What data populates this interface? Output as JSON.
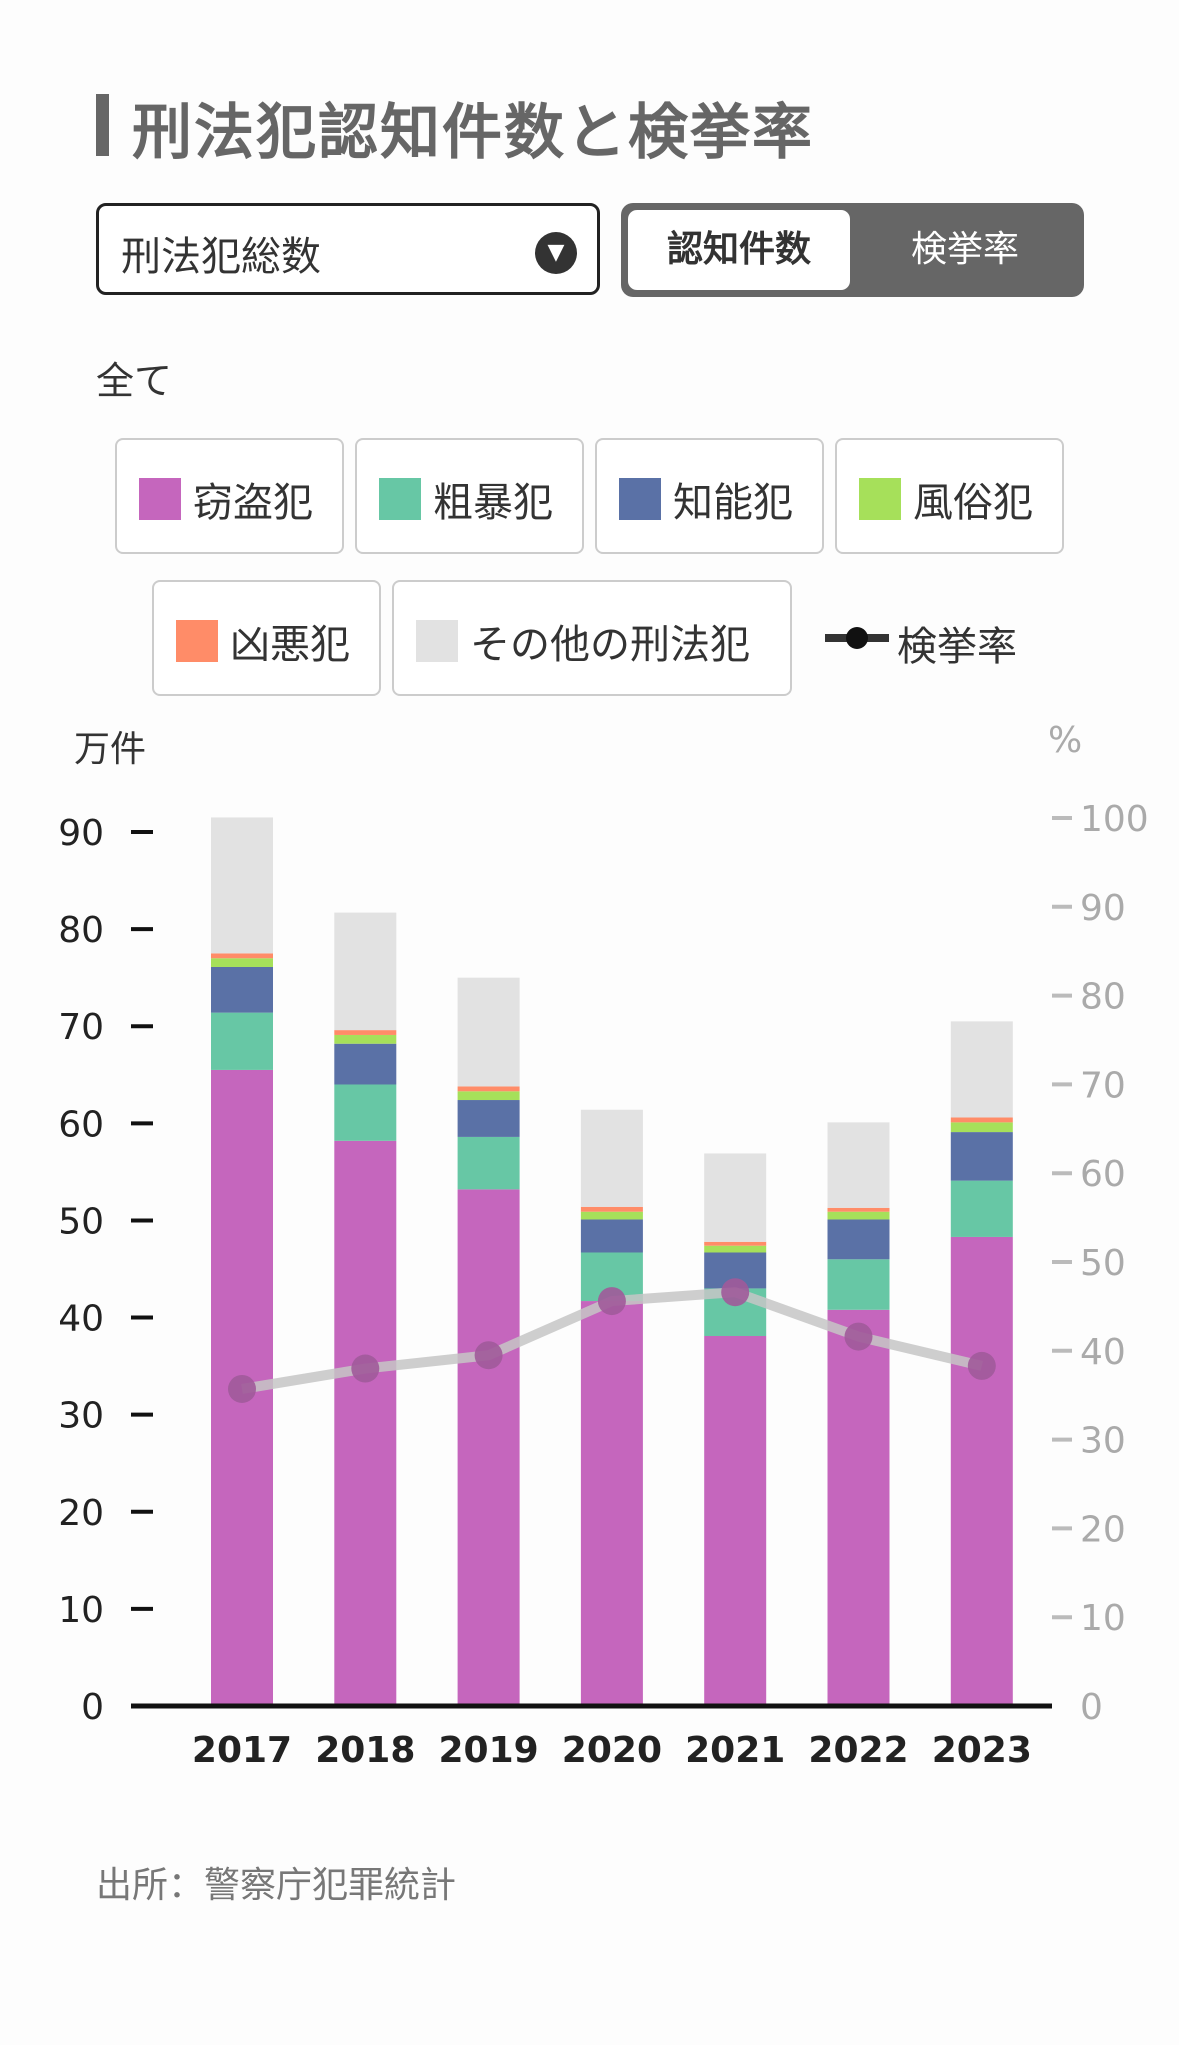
{
  "header": {
    "title": "刑法犯認知件数と検挙率"
  },
  "controls": {
    "category_select": "刑法犯総数",
    "toggle_active": "認知件数",
    "toggle_inactive": "検挙率",
    "scope_label": "全て"
  },
  "legend": {
    "items": [
      {
        "label": "窃盗犯",
        "color": "#c566bd"
      },
      {
        "label": "粗暴犯",
        "color": "#67c7a5"
      },
      {
        "label": "知能犯",
        "color": "#5a71a6"
      },
      {
        "label": "風俗犯",
        "color": "#a6e05a"
      },
      {
        "label": "凶悪犯",
        "color": "#ff8c68"
      },
      {
        "label": "その他の刑法犯",
        "color": "#e2e2e2"
      }
    ],
    "line_label": "検挙率"
  },
  "chart_data": {
    "type": "bar",
    "stacked": true,
    "categories": [
      "2017",
      "2018",
      "2019",
      "2020",
      "2021",
      "2022",
      "2023"
    ],
    "series": [
      {
        "name": "窃盗犯",
        "color": "#c566bd",
        "values": [
          65.5,
          58.2,
          53.2,
          41.7,
          38.1,
          40.8,
          48.3
        ]
      },
      {
        "name": "粗暴犯",
        "color": "#67c7a5",
        "values": [
          5.9,
          5.8,
          5.4,
          5.0,
          4.9,
          5.2,
          5.8
        ]
      },
      {
        "name": "知能犯",
        "color": "#5a71a6",
        "values": [
          4.7,
          4.2,
          3.8,
          3.4,
          3.7,
          4.1,
          5.0
        ]
      },
      {
        "name": "風俗犯",
        "color": "#a6e05a",
        "values": [
          0.9,
          0.9,
          0.9,
          0.8,
          0.7,
          0.8,
          1.0
        ]
      },
      {
        "name": "凶悪犯",
        "color": "#ff8c68",
        "values": [
          0.5,
          0.5,
          0.5,
          0.5,
          0.4,
          0.4,
          0.5
        ]
      },
      {
        "name": "その他の刑法犯",
        "color": "#e2e2e2",
        "values": [
          14.0,
          12.1,
          11.2,
          10.0,
          9.1,
          8.8,
          9.9
        ]
      }
    ],
    "line": {
      "name": "検挙率",
      "color": "#c6c6c6",
      "values": [
        35.7,
        38.0,
        39.5,
        45.6,
        46.6,
        41.6,
        38.3
      ]
    },
    "y_left": {
      "unit": "万件",
      "min": 0,
      "max": 90,
      "ticks": [
        0,
        10,
        20,
        30,
        40,
        50,
        60,
        70,
        80,
        90
      ]
    },
    "y_right": {
      "unit": "%",
      "min": 0,
      "max": 100,
      "ticks": [
        0,
        10,
        20,
        30,
        40,
        50,
        60,
        70,
        80,
        90,
        100
      ]
    }
  },
  "footer": {
    "source": "出所：警察庁犯罪統計"
  }
}
